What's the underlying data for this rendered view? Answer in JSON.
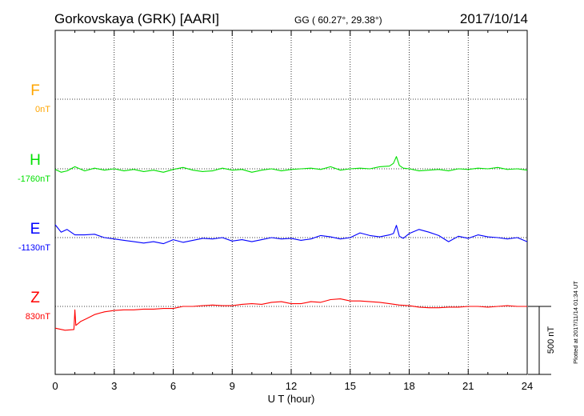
{
  "header": {
    "station": "Gorkovskaya (GRK)  [AARI]",
    "coords": "GG ( 60.27°,  29.38°)",
    "date": "2017/10/14"
  },
  "side_note": "Plotted at 2017/11/14 01:34 UT",
  "scale_label": "500 nT",
  "chart_data": {
    "type": "line",
    "xlabel": "U T (hour)",
    "xlim": [
      0,
      24
    ],
    "xticks": [
      "0",
      "3",
      "6",
      "9",
      "12",
      "15",
      "18",
      "21",
      "24"
    ],
    "grid": true,
    "series": [
      {
        "name": "F",
        "baseline": "0nT",
        "color": "#ffa500",
        "x": [],
        "y": []
      },
      {
        "name": "H",
        "baseline": "-1760nT",
        "color": "#00e000",
        "x": [
          0,
          0.3,
          0.6,
          1,
          1.5,
          2,
          2.5,
          3,
          3.5,
          4,
          4.5,
          5,
          5.5,
          6,
          6.5,
          7,
          7.5,
          8,
          8.5,
          9,
          9.5,
          10,
          10.5,
          11,
          11.5,
          12,
          12.5,
          13,
          13.5,
          14,
          14.5,
          15,
          15.5,
          16,
          16.5,
          17,
          17.2,
          17.35,
          17.5,
          17.7,
          18,
          18.5,
          19,
          19.5,
          20,
          20.5,
          21,
          21.5,
          22,
          22.5,
          23,
          23.5,
          24
        ],
        "y": [
          -5,
          -25,
          -15,
          15,
          -15,
          5,
          -10,
          0,
          -15,
          -5,
          -20,
          -10,
          -25,
          -5,
          10,
          -10,
          -20,
          -15,
          5,
          -10,
          -5,
          -25,
          -10,
          0,
          -15,
          -5,
          0,
          5,
          -5,
          15,
          -10,
          0,
          5,
          0,
          15,
          20,
          40,
          90,
          25,
          5,
          0,
          -15,
          -10,
          -5,
          -15,
          0,
          -5,
          5,
          0,
          10,
          -5,
          0,
          -10
        ]
      },
      {
        "name": "E",
        "baseline": "-1130nT",
        "color": "#0000ff",
        "x": [
          0,
          0.3,
          0.6,
          1,
          1.5,
          2,
          2.5,
          3,
          3.5,
          4,
          4.5,
          5,
          5.5,
          6,
          6.5,
          7,
          7.5,
          8,
          8.5,
          9,
          9.5,
          10,
          10.5,
          11,
          11.5,
          12,
          12.5,
          13,
          13.5,
          14,
          14.5,
          15,
          15.5,
          16,
          16.5,
          17,
          17.2,
          17.35,
          17.5,
          17.7,
          18,
          18.5,
          19,
          19.5,
          20,
          20.5,
          21,
          21.5,
          22,
          22.5,
          23,
          23.5,
          24
        ],
        "y": [
          95,
          40,
          60,
          20,
          20,
          25,
          0,
          -10,
          -20,
          -30,
          -40,
          -30,
          -45,
          -15,
          -35,
          -20,
          -5,
          -10,
          0,
          -25,
          -15,
          -30,
          -15,
          0,
          -10,
          -5,
          -20,
          -10,
          15,
          5,
          -10,
          0,
          35,
          15,
          5,
          20,
          30,
          90,
          10,
          -5,
          30,
          60,
          40,
          15,
          -30,
          10,
          -5,
          20,
          5,
          0,
          -10,
          0,
          -30
        ]
      },
      {
        "name": "Z",
        "baseline": "830nT",
        "color": "#ff0000",
        "x": [
          0,
          0.5,
          0.95,
          1.0,
          1.05,
          1.3,
          1.6,
          2,
          2.5,
          3,
          3.5,
          4,
          4.5,
          5,
          5.5,
          6,
          6.5,
          7,
          7.5,
          8,
          8.5,
          9,
          9.5,
          10,
          10.5,
          11,
          11.5,
          12,
          12.5,
          13,
          13.5,
          14,
          14.5,
          15,
          15.5,
          16,
          16.5,
          17,
          17.5,
          18,
          18.5,
          19,
          19.5,
          20,
          20.5,
          21,
          21.5,
          22,
          22.5,
          23,
          23.5,
          24
        ],
        "y": [
          -160,
          -175,
          -170,
          -25,
          -140,
          -110,
          -90,
          -60,
          -40,
          -30,
          -25,
          -25,
          -20,
          -20,
          -15,
          -15,
          0,
          0,
          5,
          10,
          5,
          5,
          15,
          20,
          15,
          30,
          35,
          20,
          20,
          35,
          30,
          50,
          55,
          40,
          40,
          35,
          30,
          20,
          10,
          5,
          -5,
          -10,
          -10,
          -5,
          -5,
          0,
          0,
          -5,
          0,
          5,
          0,
          0
        ]
      }
    ]
  }
}
